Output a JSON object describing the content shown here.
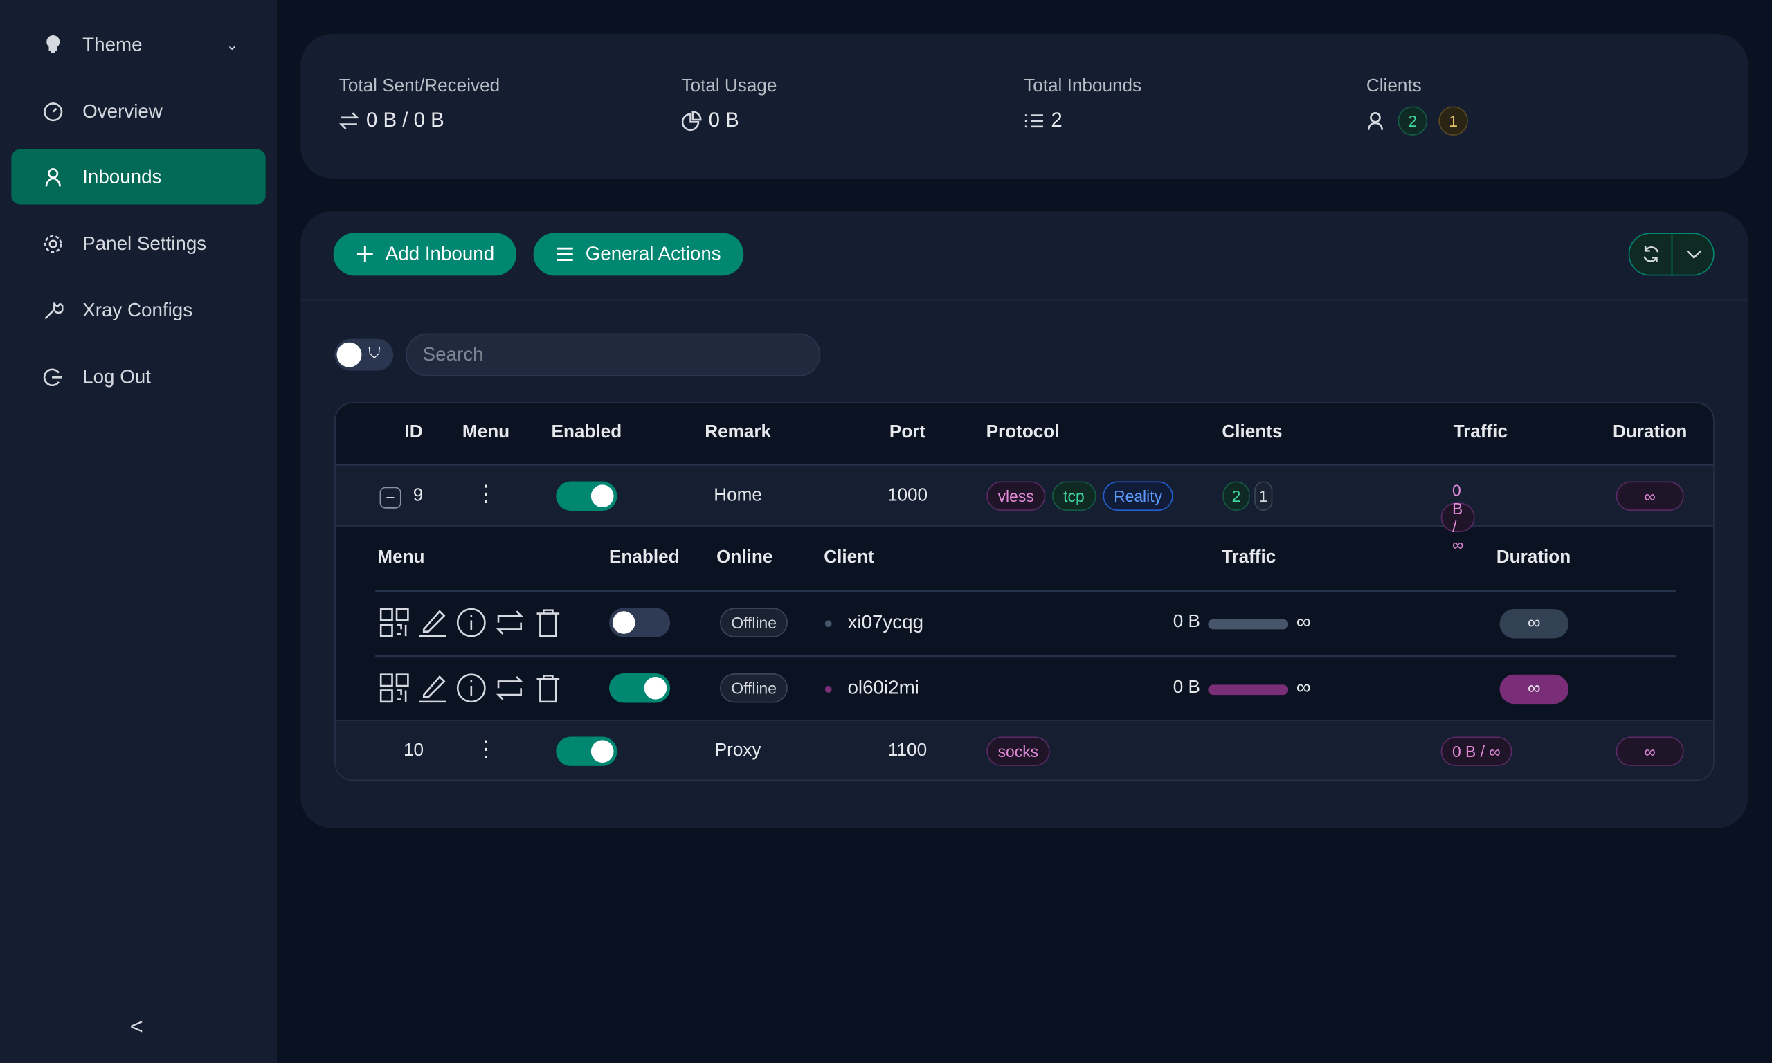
{
  "sidebar": {
    "items": [
      {
        "label": "Theme",
        "icon": "bulb-icon"
      },
      {
        "label": "Overview",
        "icon": "dashboard-icon"
      },
      {
        "label": "Inbounds",
        "icon": "user-icon",
        "active": true
      },
      {
        "label": "Panel Settings",
        "icon": "gear-icon"
      },
      {
        "label": "Xray Configs",
        "icon": "wrench-icon"
      },
      {
        "label": "Log Out",
        "icon": "logout-icon"
      }
    ],
    "collapse": "<"
  },
  "stats": {
    "sent_received": {
      "label": "Total Sent/Received",
      "value": "0 B / 0 B"
    },
    "usage": {
      "label": "Total Usage",
      "value": "0 B"
    },
    "inbounds": {
      "label": "Total Inbounds",
      "value": "2"
    },
    "clients": {
      "label": "Clients",
      "active": "2",
      "other": "1"
    }
  },
  "toolbar": {
    "add": "Add Inbound",
    "general": "General Actions",
    "search_placeholder": "Search"
  },
  "table": {
    "headers": [
      "ID",
      "Menu",
      "Enabled",
      "Remark",
      "Port",
      "Protocol",
      "Clients",
      "Traffic",
      "Duration"
    ],
    "rows": [
      {
        "id": "9",
        "enabled": true,
        "remark": "Home",
        "port": "1000",
        "protocol": [
          "vless",
          "tcp",
          "Reality"
        ],
        "clients_active": "2",
        "clients_other": "1",
        "traffic": "0 B / ∞",
        "duration": "∞"
      },
      {
        "id": "10",
        "enabled": true,
        "remark": "Proxy",
        "port": "1100",
        "protocol": [
          "socks"
        ],
        "traffic": "0 B / ∞",
        "duration": "∞"
      }
    ],
    "sub": {
      "headers": [
        "Menu",
        "Enabled",
        "Online",
        "Client",
        "Traffic",
        "Duration"
      ],
      "rows": [
        {
          "enabled": false,
          "online": "Offline",
          "client": "xi07ycqg",
          "traffic": "0 B",
          "limit": "∞",
          "duration": "∞"
        },
        {
          "enabled": true,
          "online": "Offline",
          "client": "ol60i2mi",
          "traffic": "0 B",
          "limit": "∞",
          "duration": "∞"
        }
      ]
    }
  },
  "colors": {
    "accent": "#008771",
    "active_nav": "#006a57",
    "purple": "#7a2e78"
  }
}
